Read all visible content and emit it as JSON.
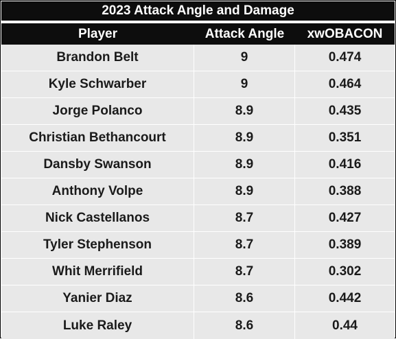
{
  "chart_data": {
    "type": "table",
    "title": "2023 Attack Angle and Damage",
    "columns": [
      "Player",
      "Attack Angle",
      "xwOBACON"
    ],
    "rows": [
      {
        "player": "Brandon Belt",
        "attack_angle": "9",
        "xwobacon": "0.474"
      },
      {
        "player": "Kyle Schwarber",
        "attack_angle": "9",
        "xwobacon": "0.464"
      },
      {
        "player": "Jorge Polanco",
        "attack_angle": "8.9",
        "xwobacon": "0.435"
      },
      {
        "player": "Christian Bethancourt",
        "attack_angle": "8.9",
        "xwobacon": "0.351"
      },
      {
        "player": "Dansby Swanson",
        "attack_angle": "8.9",
        "xwobacon": "0.416"
      },
      {
        "player": "Anthony Volpe",
        "attack_angle": "8.9",
        "xwobacon": "0.388"
      },
      {
        "player": "Nick Castellanos",
        "attack_angle": "8.7",
        "xwobacon": "0.427"
      },
      {
        "player": "Tyler Stephenson",
        "attack_angle": "8.7",
        "xwobacon": "0.389"
      },
      {
        "player": "Whit Merrifield",
        "attack_angle": "8.7",
        "xwobacon": "0.302"
      },
      {
        "player": "Yanier Diaz",
        "attack_angle": "8.6",
        "xwobacon": "0.442"
      },
      {
        "player": "Luke Raley",
        "attack_angle": "8.6",
        "xwobacon": "0.44"
      }
    ]
  },
  "colors": {
    "header_bg": "#0d0d0d",
    "header_text": "#ffffff",
    "row_bg": "#e8e8e8",
    "cell_divider": "#ffffff",
    "body_text": "#1a1a1a"
  }
}
